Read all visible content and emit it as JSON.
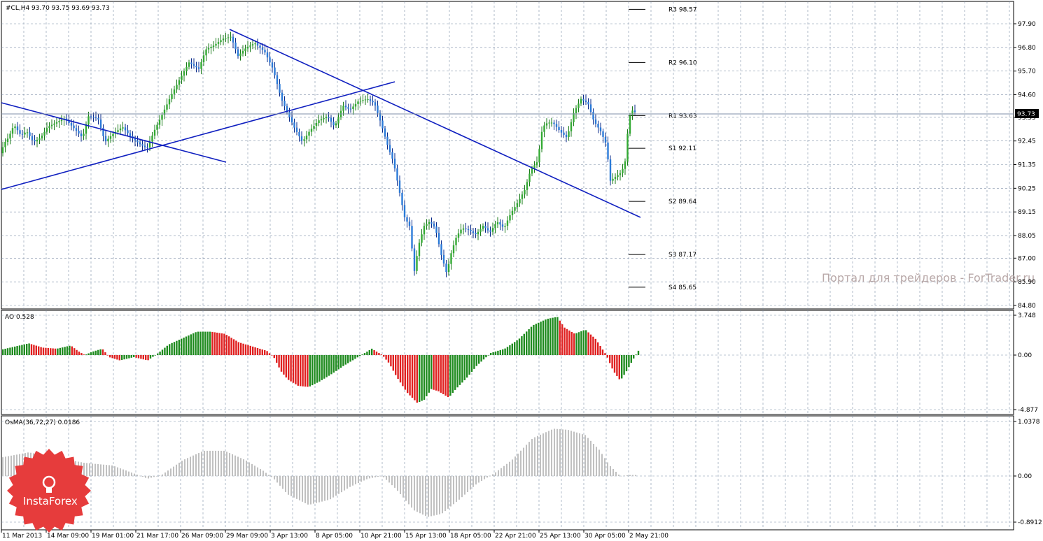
{
  "main_panel": {
    "header": "#CL,H4  93.70 93.75 93.69 93.73",
    "current_price": "93.73",
    "y_ticks": [
      "97.90",
      "96.80",
      "95.70",
      "94.60",
      "93.55",
      "92.45",
      "91.35",
      "90.25",
      "89.15",
      "88.05",
      "87.00",
      "85.90",
      "84.80"
    ],
    "pivots": [
      {
        "label": "R3 98.57",
        "value": 98.57
      },
      {
        "label": "R2 96.10",
        "value": 96.1
      },
      {
        "label": "R1 93.63",
        "value": 93.63
      },
      {
        "label": "S1 92.11",
        "value": 92.11
      },
      {
        "label": "S2 89.64",
        "value": 89.64
      },
      {
        "label": "S3 87.17",
        "value": 87.17
      },
      {
        "label": "S4 85.65",
        "value": 85.65
      }
    ],
    "watermark": "Портал для трейдеров - ForTrader.ru"
  },
  "ao_panel": {
    "header": "AO 0.528",
    "y_ticks": [
      "3.748",
      "0.00",
      "-4.877"
    ]
  },
  "osma_panel": {
    "header": "OsMA(36,72,27) 0.0186",
    "y_ticks": [
      "1.0378",
      "0.00",
      "-0.8912"
    ]
  },
  "x_ticks": [
    "11 Mar 2013",
    "14 Mar 09:00",
    "19 Mar 01:00",
    "21 Mar 17:00",
    "26 Mar 09:00",
    "29 Mar 09:00",
    "3 Apr 13:00",
    "8 Apr 05:00",
    "10 Apr 21:00",
    "15 Apr 13:00",
    "18 Apr 05:00",
    "22 Apr 21:00",
    "25 Apr 13:00",
    "30 Apr 05:00",
    "2 May 21:00"
  ],
  "logo": {
    "text": "InstaForex",
    "color": "#e63c3c"
  },
  "colors": {
    "bull": "#1f8b1f",
    "bear": "#e02020",
    "trendline": "#1020c0",
    "grid": "#7f8fa8",
    "osma": "#c0c0c0"
  },
  "chart_data": [
    {
      "type": "candlestick",
      "title": "#CL,H4",
      "ylim": [
        84.3,
        98.9
      ],
      "close_path": [
        [
          0,
          91.6
        ],
        [
          5,
          92.3
        ],
        [
          12,
          92.6
        ],
        [
          20,
          93.2
        ],
        [
          30,
          92.7
        ],
        [
          38,
          92.9
        ],
        [
          48,
          92.4
        ],
        [
          58,
          92.6
        ],
        [
          68,
          93.1
        ],
        [
          80,
          93.3
        ],
        [
          92,
          93.5
        ],
        [
          104,
          93.1
        ],
        [
          118,
          92.6
        ],
        [
          126,
          93.6
        ],
        [
          140,
          93.5
        ],
        [
          150,
          92.4
        ],
        [
          162,
          92.8
        ],
        [
          175,
          93.1
        ],
        [
          188,
          92.6
        ],
        [
          200,
          92.3
        ],
        [
          210,
          92.1
        ],
        [
          220,
          92.9
        ],
        [
          232,
          93.7
        ],
        [
          245,
          94.6
        ],
        [
          258,
          95.4
        ],
        [
          270,
          96.1
        ],
        [
          284,
          95.8
        ],
        [
          294,
          96.7
        ],
        [
          306,
          96.9
        ],
        [
          318,
          97.2
        ],
        [
          330,
          97.3
        ],
        [
          340,
          96.4
        ],
        [
          352,
          96.8
        ],
        [
          364,
          97.0
        ],
        [
          378,
          96.6
        ],
        [
          390,
          95.8
        ],
        [
          402,
          94.4
        ],
        [
          410,
          93.8
        ],
        [
          420,
          93.1
        ],
        [
          432,
          92.4
        ],
        [
          442,
          92.9
        ],
        [
          455,
          93.4
        ],
        [
          468,
          93.6
        ],
        [
          478,
          93.1
        ],
        [
          490,
          94.1
        ],
        [
          500,
          93.9
        ],
        [
          512,
          94.3
        ],
        [
          525,
          94.4
        ],
        [
          535,
          94.2
        ],
        [
          545,
          93.2
        ],
        [
          555,
          92.1
        ],
        [
          562,
          91.5
        ],
        [
          570,
          90.2
        ],
        [
          578,
          88.9
        ],
        [
          585,
          88.5
        ],
        [
          592,
          86.4
        ],
        [
          598,
          87.6
        ],
        [
          606,
          88.5
        ],
        [
          614,
          88.7
        ],
        [
          622,
          88.4
        ],
        [
          630,
          87.2
        ],
        [
          638,
          86.3
        ],
        [
          645,
          87.3
        ],
        [
          652,
          88.0
        ],
        [
          660,
          88.4
        ],
        [
          670,
          88.3
        ],
        [
          680,
          88.1
        ],
        [
          690,
          88.5
        ],
        [
          700,
          88.2
        ],
        [
          710,
          88.7
        ],
        [
          720,
          88.4
        ],
        [
          730,
          89.1
        ],
        [
          740,
          89.6
        ],
        [
          750,
          90.2
        ],
        [
          758,
          91.1
        ],
        [
          768,
          91.5
        ],
        [
          775,
          93.1
        ],
        [
          782,
          93.3
        ],
        [
          790,
          93.3
        ],
        [
          800,
          92.9
        ],
        [
          810,
          92.6
        ],
        [
          820,
          93.8
        ],
        [
          830,
          94.4
        ],
        [
          840,
          94.2
        ],
        [
          848,
          93.4
        ],
        [
          858,
          92.9
        ],
        [
          866,
          92.3
        ],
        [
          872,
          90.6
        ],
        [
          880,
          90.8
        ],
        [
          888,
          91.0
        ],
        [
          894,
          91.6
        ],
        [
          898,
          93.5
        ],
        [
          904,
          93.9
        ],
        [
          910,
          93.7
        ]
      ]
    },
    {
      "type": "bar",
      "title": "AO 0.528",
      "ylim": [
        -4.877,
        3.748
      ],
      "values_path": [
        [
          0,
          0.5
        ],
        [
          20,
          0.8
        ],
        [
          40,
          1.1
        ],
        [
          60,
          0.7
        ],
        [
          80,
          0.6
        ],
        [
          100,
          0.9
        ],
        [
          110,
          0.4
        ],
        [
          120,
          0.0
        ],
        [
          130,
          0.3
        ],
        [
          145,
          0.6
        ],
        [
          155,
          -0.2
        ],
        [
          170,
          -0.5
        ],
        [
          190,
          -0.2
        ],
        [
          210,
          -0.5
        ],
        [
          225,
          0.2
        ],
        [
          240,
          1.0
        ],
        [
          260,
          1.6
        ],
        [
          280,
          2.2
        ],
        [
          300,
          2.2
        ],
        [
          320,
          2.0
        ],
        [
          340,
          1.2
        ],
        [
          360,
          0.8
        ],
        [
          380,
          0.4
        ],
        [
          390,
          -0.2
        ],
        [
          400,
          -1.5
        ],
        [
          410,
          -2.3
        ],
        [
          425,
          -2.9
        ],
        [
          440,
          -3.0
        ],
        [
          455,
          -2.5
        ],
        [
          470,
          -1.9
        ],
        [
          490,
          -1.0
        ],
        [
          510,
          -0.2
        ],
        [
          530,
          0.6
        ],
        [
          545,
          0.0
        ],
        [
          555,
          -0.8
        ],
        [
          565,
          -2.0
        ],
        [
          580,
          -3.5
        ],
        [
          595,
          -4.5
        ],
        [
          605,
          -4.2
        ],
        [
          615,
          -3.2
        ],
        [
          625,
          -3.4
        ],
        [
          640,
          -4.0
        ],
        [
          650,
          -3.2
        ],
        [
          665,
          -2.2
        ],
        [
          680,
          -1.0
        ],
        [
          700,
          0.2
        ],
        [
          720,
          0.6
        ],
        [
          740,
          1.5
        ],
        [
          760,
          2.8
        ],
        [
          780,
          3.4
        ],
        [
          795,
          3.6
        ],
        [
          805,
          2.6
        ],
        [
          820,
          2.0
        ],
        [
          835,
          2.4
        ],
        [
          850,
          1.5
        ],
        [
          865,
          0.0
        ],
        [
          875,
          -1.5
        ],
        [
          885,
          -2.4
        ],
        [
          895,
          -1.4
        ],
        [
          905,
          -0.2
        ],
        [
          912,
          0.528
        ]
      ]
    },
    {
      "type": "bar",
      "title": "OsMA(36,72,27) 0.0186",
      "ylim": [
        -0.8912,
        1.0378
      ],
      "values_path": [
        [
          0,
          0.35
        ],
        [
          40,
          0.45
        ],
        [
          80,
          0.35
        ],
        [
          120,
          0.25
        ],
        [
          160,
          0.2
        ],
        [
          190,
          0.05
        ],
        [
          210,
          -0.05
        ],
        [
          230,
          0.02
        ],
        [
          260,
          0.3
        ],
        [
          290,
          0.48
        ],
        [
          320,
          0.48
        ],
        [
          350,
          0.3
        ],
        [
          375,
          0.1
        ],
        [
          390,
          -0.05
        ],
        [
          410,
          -0.35
        ],
        [
          440,
          -0.55
        ],
        [
          470,
          -0.45
        ],
        [
          500,
          -0.2
        ],
        [
          525,
          -0.05
        ],
        [
          545,
          0.0
        ],
        [
          565,
          -0.25
        ],
        [
          590,
          -0.65
        ],
        [
          610,
          -0.78
        ],
        [
          630,
          -0.72
        ],
        [
          655,
          -0.45
        ],
        [
          680,
          -0.15
        ],
        [
          705,
          0.05
        ],
        [
          730,
          0.3
        ],
        [
          760,
          0.72
        ],
        [
          790,
          0.9
        ],
        [
          810,
          0.88
        ],
        [
          835,
          0.78
        ],
        [
          855,
          0.5
        ],
        [
          870,
          0.2
        ],
        [
          885,
          0.0
        ],
        [
          900,
          0.02
        ],
        [
          910,
          0.0186
        ]
      ]
    }
  ]
}
